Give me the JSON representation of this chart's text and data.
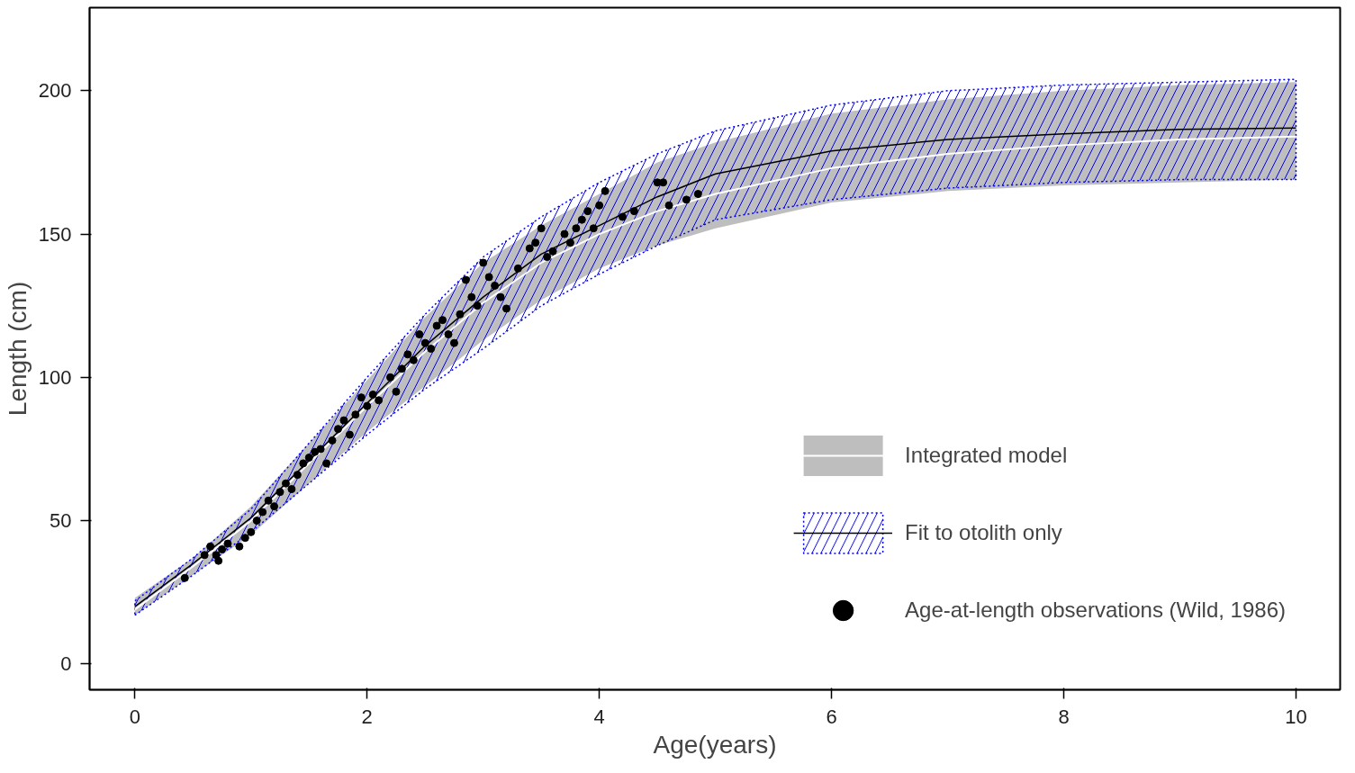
{
  "chart_data": {
    "type": "line",
    "xlabel": "Age(years)",
    "ylabel": "Length (cm)",
    "xlim": [
      -0.39,
      10.38
    ],
    "ylim": [
      -9,
      229
    ],
    "xticks": [
      0,
      2,
      4,
      6,
      8,
      10
    ],
    "yticks": [
      0,
      50,
      100,
      150,
      200
    ],
    "grid": false,
    "legend": "bottom right",
    "series": [
      {
        "name": "Integrated model",
        "color": "#ffffff",
        "x": [
          0,
          0.5,
          1,
          1.5,
          2,
          2.5,
          3,
          3.5,
          4,
          4.5,
          5,
          6,
          7,
          8,
          9,
          10
        ],
        "values": [
          19,
          34,
          50,
          70,
          90,
          109,
          126,
          140,
          150,
          158,
          164,
          173,
          178,
          181,
          183,
          184
        ],
        "lower": [
          17,
          31,
          45,
          63,
          81,
          97,
          113,
          127,
          138,
          146,
          152,
          161,
          165,
          167,
          168,
          169
        ],
        "upper": [
          23,
          37,
          55,
          77,
          99,
          121,
          140,
          153,
          164,
          175,
          182,
          192,
          197,
          200,
          202,
          203
        ]
      },
      {
        "name": "Fit to otolith only",
        "color": "#000000",
        "x": [
          0,
          0.5,
          1,
          1.5,
          2,
          2.5,
          3,
          3.5,
          4,
          4.5,
          5,
          6,
          7,
          8,
          9,
          10
        ],
        "values": [
          20,
          35,
          51,
          71,
          91,
          111,
          128,
          143,
          153,
          163,
          171,
          179,
          183,
          185,
          186.5,
          187
        ],
        "lower": [
          17,
          31,
          46,
          63,
          80,
          96,
          110,
          125,
          136,
          146,
          155,
          162,
          166,
          168,
          169,
          169
        ],
        "upper": [
          22,
          37,
          54,
          77,
          100,
          122,
          142,
          156,
          168,
          178,
          186,
          195,
          200,
          202,
          203,
          204
        ]
      },
      {
        "name": "Age-at-length observations (Wild, 1986)",
        "type": "scatter",
        "marker": "circle",
        "color": "#000000",
        "x": [
          0.43,
          0.6,
          0.65,
          0.7,
          0.72,
          0.75,
          0.8,
          0.9,
          0.95,
          1.0,
          1.05,
          1.1,
          1.15,
          1.2,
          1.25,
          1.3,
          1.35,
          1.4,
          1.45,
          1.5,
          1.55,
          1.6,
          1.65,
          1.7,
          1.75,
          1.8,
          1.85,
          1.9,
          1.95,
          2.0,
          2.05,
          2.1,
          2.2,
          2.25,
          2.3,
          2.35,
          2.4,
          2.45,
          2.5,
          2.55,
          2.6,
          2.65,
          2.7,
          2.75,
          2.8,
          2.85,
          2.9,
          2.95,
          3.0,
          3.05,
          3.1,
          3.15,
          3.2,
          3.3,
          3.4,
          3.45,
          3.5,
          3.55,
          3.6,
          3.7,
          3.75,
          3.8,
          3.85,
          3.9,
          3.95,
          4.0,
          4.05,
          4.2,
          4.3,
          4.5,
          4.55,
          4.6,
          4.75,
          4.85
        ],
        "values": [
          30,
          38,
          41,
          38,
          36,
          40,
          42,
          41,
          44,
          46,
          50,
          53,
          57,
          55,
          60,
          63,
          61,
          66,
          70,
          72,
          74,
          75,
          70,
          78,
          82,
          85,
          80,
          87,
          93,
          90,
          94,
          92,
          100,
          95,
          103,
          108,
          106,
          115,
          112,
          110,
          118,
          120,
          115,
          112,
          122,
          134,
          128,
          125,
          140,
          135,
          132,
          128,
          124,
          138,
          145,
          147,
          152,
          142,
          144,
          150,
          147,
          152,
          155,
          158,
          152,
          160,
          165,
          156,
          158,
          168,
          168,
          160,
          162,
          164
        ]
      }
    ]
  }
}
